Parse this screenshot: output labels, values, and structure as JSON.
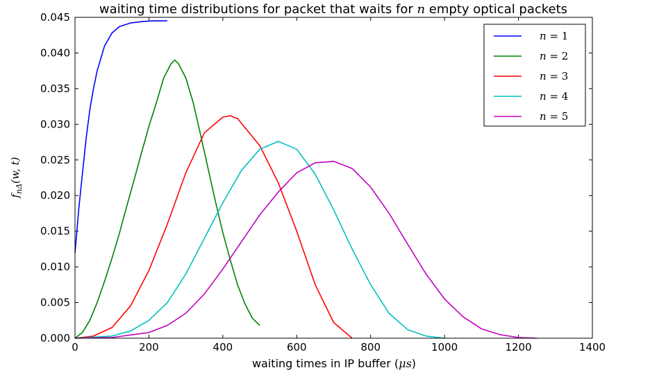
{
  "chart_data": {
    "type": "line",
    "title": {
      "prefix": "waiting time distributions for packet that waits for ",
      "var": "n",
      "suffix": " empty optical packets"
    },
    "xlabel": {
      "prefix": "waiting times in IP buffer (",
      "var": "μs",
      "suffix": ")"
    },
    "ylabel": "f_{nΔ}(w,t)",
    "ylabel_parts": {
      "f": "f",
      "sub": "nΔ",
      "args": "(w, t)"
    },
    "xlim": [
      0,
      1400
    ],
    "ylim": [
      0,
      0.045
    ],
    "xticks": [
      0,
      200,
      400,
      600,
      800,
      1000,
      1200,
      1400
    ],
    "yticks": [
      0.0,
      0.005,
      0.01,
      0.015,
      0.02,
      0.025,
      0.03,
      0.035,
      0.04,
      0.045
    ],
    "ytick_labels": [
      "0.000",
      "0.005",
      "0.010",
      "0.015",
      "0.020",
      "0.025",
      "0.030",
      "0.035",
      "0.040",
      "0.045"
    ],
    "grid": false,
    "legend_position": "top-right",
    "series": [
      {
        "name": "n = 1",
        "legend_lhs": "n",
        "legend_rhs": "1",
        "color": "#0000ff",
        "x": [
          0,
          5,
          10,
          20,
          30,
          40,
          50,
          60,
          80,
          100,
          120,
          150,
          180,
          210,
          250
        ],
        "y": [
          0.012,
          0.015,
          0.018,
          0.023,
          0.028,
          0.032,
          0.035,
          0.0375,
          0.041,
          0.0428,
          0.0437,
          0.0442,
          0.0444,
          0.0445,
          0.0445
        ]
      },
      {
        "name": "n = 2",
        "legend_lhs": "n",
        "legend_rhs": "2",
        "color": "#008000",
        "x": [
          0,
          20,
          40,
          60,
          80,
          100,
          120,
          140,
          160,
          180,
          200,
          220,
          240,
          260,
          270,
          280,
          300,
          320,
          340,
          360,
          380,
          400,
          420,
          440,
          460,
          480,
          500
        ],
        "y": [
          0.0,
          0.0008,
          0.0025,
          0.005,
          0.008,
          0.0112,
          0.0147,
          0.0185,
          0.0222,
          0.026,
          0.0297,
          0.033,
          0.0365,
          0.0385,
          0.039,
          0.0385,
          0.0365,
          0.033,
          0.0285,
          0.0238,
          0.0192,
          0.0148,
          0.011,
          0.0075,
          0.0048,
          0.0028,
          0.0018
        ]
      },
      {
        "name": "n = 3",
        "legend_lhs": "n",
        "legend_rhs": "3",
        "color": "#ff0000",
        "x": [
          0,
          50,
          100,
          150,
          200,
          250,
          300,
          350,
          400,
          420,
          440,
          500,
          550,
          600,
          650,
          700,
          750
        ],
        "y": [
          0.0,
          0.0003,
          0.0015,
          0.0045,
          0.0095,
          0.016,
          0.0232,
          0.0288,
          0.031,
          0.0312,
          0.0308,
          0.027,
          0.0218,
          0.015,
          0.0075,
          0.0022,
          0.0
        ]
      },
      {
        "name": "n = 4",
        "legend_lhs": "n",
        "legend_rhs": "4",
        "color": "#00bfbf",
        "x": [
          0,
          100,
          150,
          200,
          250,
          300,
          350,
          400,
          450,
          500,
          550,
          600,
          650,
          700,
          750,
          800,
          850,
          900,
          950,
          1000
        ],
        "y": [
          0.0,
          0.0003,
          0.001,
          0.0025,
          0.005,
          0.009,
          0.014,
          0.019,
          0.0235,
          0.0265,
          0.0276,
          0.0265,
          0.023,
          0.018,
          0.0125,
          0.0075,
          0.0035,
          0.0012,
          0.0003,
          0.0
        ]
      },
      {
        "name": "n = 5",
        "legend_lhs": "n",
        "legend_rhs": "5",
        "color": "#bf00bf",
        "x": [
          0,
          100,
          200,
          250,
          300,
          350,
          400,
          450,
          500,
          550,
          600,
          650,
          700,
          750,
          800,
          850,
          900,
          950,
          1000,
          1050,
          1100,
          1150,
          1200,
          1250
        ],
        "y": [
          0.0,
          0.0001,
          0.0008,
          0.0018,
          0.0035,
          0.0062,
          0.0097,
          0.0135,
          0.0173,
          0.0205,
          0.0232,
          0.0246,
          0.0248,
          0.0238,
          0.0212,
          0.0175,
          0.0132,
          0.009,
          0.0055,
          0.003,
          0.0013,
          0.0005,
          0.0001,
          0.0
        ]
      }
    ]
  }
}
